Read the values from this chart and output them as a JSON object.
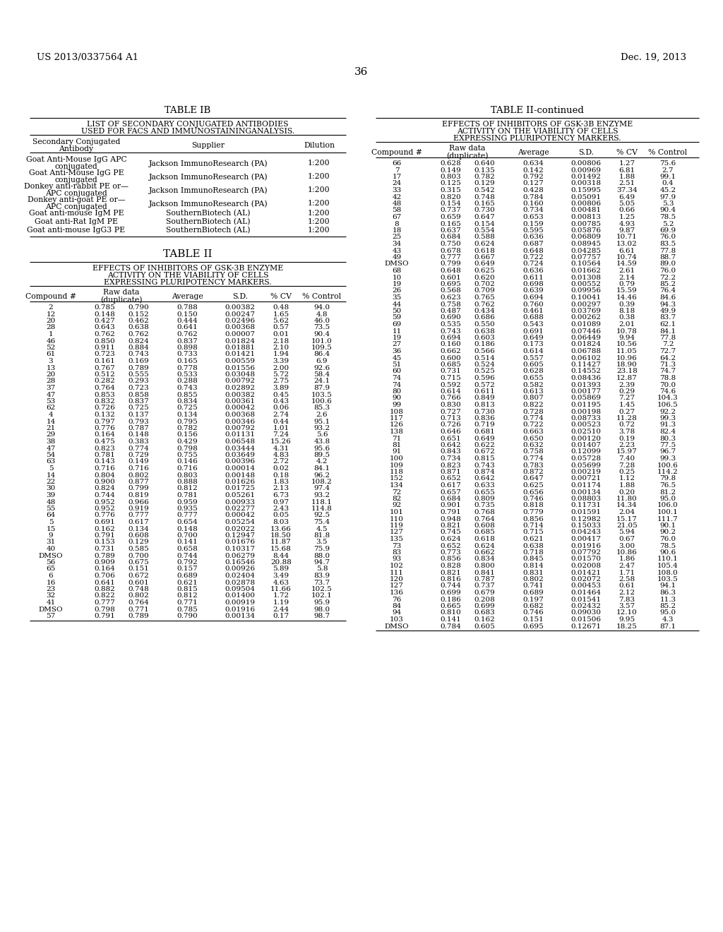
{
  "header_left": "US 2013/0337564 A1",
  "header_right": "Dec. 19, 2013",
  "page_number": "36",
  "table1b_title": "TABLE IB",
  "table1b_subtitle1": "LIST OF SECONDARY CONJUGATED ANTIBODIES",
  "table1b_subtitle2": "USED FOR FACS AND IMMUNOSTAININGANALYSIS.",
  "table1b_rows": [
    [
      "Goat Anti-Mouse IgG APC\nconjugated",
      "Jackson ImmunoResearch (PA)",
      "1:200"
    ],
    [
      "Goat Anti-Mouse IgG PE\nconjugated",
      "Jackson ImmunoResearch (PA)",
      "1:200"
    ],
    [
      "Donkey anti-rabbit PE or—\nAPC conjugated",
      "Jackson ImmunoResearch (PA)",
      "1:200"
    ],
    [
      "Donkey anti-goat PE or—\nAPC conjugated",
      "Jackson ImmunoResearch (PA)",
      "1:200"
    ],
    [
      "Goat anti-mouse IgM PE",
      "SouthernBiotech (AL)",
      "1:200"
    ],
    [
      "Goat anti-Rat IgM PE",
      "SouthernBiotech (AL)",
      "1:200"
    ],
    [
      "Goat anti-mouse IgG3 PE",
      "SouthernBiotech (AL)",
      "1:200"
    ]
  ],
  "table2_title": "TABLE II",
  "table2_subtitle1": "EFFECTS OF INHIBITORS OF GSK-3B ENZYME",
  "table2_subtitle2": "ACTIVITY ON THE VIABILITY OF CELLS",
  "table2_subtitle3": "EXPRESSING PLURIPOTENCY MARKERS.",
  "table2_rows_left": [
    [
      "2",
      "0.785",
      "0.790",
      "0.788",
      "0.00382",
      "0.48",
      "94.0"
    ],
    [
      "12",
      "0.148",
      "0.152",
      "0.150",
      "0.00247",
      "1.65",
      "4.8"
    ],
    [
      "20",
      "0.427",
      "0.462",
      "0.444",
      "0.02496",
      "5.62",
      "46.0"
    ],
    [
      "28",
      "0.643",
      "0.638",
      "0.641",
      "0.00368",
      "0.57",
      "73.5"
    ],
    [
      "1",
      "0.762",
      "0.762",
      "0.762",
      "0.00007",
      "0.01",
      "90.4"
    ],
    [
      "46",
      "0.850",
      "0.824",
      "0.837",
      "0.01824",
      "2.18",
      "101.0"
    ],
    [
      "52",
      "0.911",
      "0.884",
      "0.898",
      "0.01881",
      "2.10",
      "109.5"
    ],
    [
      "61",
      "0.723",
      "0.743",
      "0.733",
      "0.01421",
      "1.94",
      "86.4"
    ],
    [
      "3",
      "0.161",
      "0.169",
      "0.165",
      "0.00559",
      "3.39",
      "6.9"
    ],
    [
      "13",
      "0.767",
      "0.789",
      "0.778",
      "0.01556",
      "2.00",
      "92.6"
    ],
    [
      "20",
      "0.512",
      "0.555",
      "0.533",
      "0.03048",
      "5.72",
      "58.4"
    ],
    [
      "28",
      "0.282",
      "0.293",
      "0.288",
      "0.00792",
      "2.75",
      "24.1"
    ],
    [
      "37",
      "0.764",
      "0.723",
      "0.743",
      "0.02892",
      "3.89",
      "87.9"
    ],
    [
      "47",
      "0.853",
      "0.858",
      "0.855",
      "0.00382",
      "0.45",
      "103.5"
    ],
    [
      "53",
      "0.832",
      "0.837",
      "0.834",
      "0.00361",
      "0.43",
      "100.6"
    ],
    [
      "62",
      "0.726",
      "0.725",
      "0.725",
      "0.00042",
      "0.06",
      "85.3"
    ],
    [
      "4",
      "0.132",
      "0.137",
      "0.134",
      "0.00368",
      "2.74",
      "2.6"
    ],
    [
      "14",
      "0.797",
      "0.793",
      "0.795",
      "0.00346",
      "0.44",
      "95.1"
    ],
    [
      "21",
      "0.776",
      "0.787",
      "0.782",
      "0.00792",
      "1.01",
      "93.2"
    ],
    [
      "29",
      "0.164",
      "0.148",
      "0.156",
      "0.01131",
      "7.24",
      "5.6"
    ],
    [
      "38",
      "0.475",
      "0.383",
      "0.429",
      "0.06548",
      "15.26",
      "43.8"
    ],
    [
      "47",
      "0.823",
      "0.774",
      "0.798",
      "0.03444",
      "4.31",
      "95.6"
    ],
    [
      "54",
      "0.781",
      "0.729",
      "0.755",
      "0.03649",
      "4.83",
      "89.5"
    ],
    [
      "63",
      "0.143",
      "0.149",
      "0.146",
      "0.00396",
      "2.72",
      "4.2"
    ],
    [
      "5",
      "0.716",
      "0.716",
      "0.716",
      "0.00014",
      "0.02",
      "84.1"
    ],
    [
      "14",
      "0.804",
      "0.802",
      "0.803",
      "0.00148",
      "0.18",
      "96.2"
    ],
    [
      "22",
      "0.900",
      "0.877",
      "0.888",
      "0.01626",
      "1.83",
      "108.2"
    ],
    [
      "30",
      "0.824",
      "0.799",
      "0.812",
      "0.01725",
      "2.13",
      "97.4"
    ],
    [
      "39",
      "0.744",
      "0.819",
      "0.781",
      "0.05261",
      "6.73",
      "93.2"
    ],
    [
      "48",
      "0.952",
      "0.966",
      "0.959",
      "0.00933",
      "0.97",
      "118.1"
    ],
    [
      "55",
      "0.952",
      "0.919",
      "0.935",
      "0.02277",
      "2.43",
      "114.8"
    ],
    [
      "64",
      "0.776",
      "0.777",
      "0.777",
      "0.00042",
      "0.05",
      "92.5"
    ],
    [
      "5",
      "0.691",
      "0.617",
      "0.654",
      "0.05254",
      "8.03",
      "75.4"
    ],
    [
      "15",
      "0.162",
      "0.134",
      "0.148",
      "0.02022",
      "13.66",
      "4.5"
    ],
    [
      "9",
      "0.791",
      "0.608",
      "0.700",
      "0.12947",
      "18.50",
      "81.8"
    ],
    [
      "31",
      "0.153",
      "0.129",
      "0.141",
      "0.01676",
      "11.87",
      "3.5"
    ],
    [
      "40",
      "0.731",
      "0.585",
      "0.658",
      "0.10317",
      "15.68",
      "75.9"
    ],
    [
      "DMSO",
      "0.789",
      "0.700",
      "0.744",
      "0.06279",
      "8.44",
      "88.0"
    ],
    [
      "56",
      "0.909",
      "0.675",
      "0.792",
      "0.16546",
      "20.88",
      "94.7"
    ],
    [
      "65",
      "0.164",
      "0.151",
      "0.157",
      "0.00926",
      "5.89",
      "5.8"
    ],
    [
      "6",
      "0.706",
      "0.672",
      "0.689",
      "0.02404",
      "3.49",
      "83.9"
    ],
    [
      "16",
      "0.641",
      "0.601",
      "0.621",
      "0.02878",
      "4.63",
      "73.7"
    ],
    [
      "23",
      "0.882",
      "0.748",
      "0.815",
      "0.09504",
      "11.66",
      "102.5"
    ],
    [
      "32",
      "0.822",
      "0.802",
      "0.812",
      "0.01400",
      "1.72",
      "102.1"
    ],
    [
      "41",
      "0.777",
      "0.764",
      "0.771",
      "0.00919",
      "1.19",
      "95.9"
    ],
    [
      "DMSO",
      "0.798",
      "0.771",
      "0.785",
      "0.01916",
      "2.44",
      "98.0"
    ],
    [
      "57",
      "0.791",
      "0.789",
      "0.790",
      "0.00134",
      "0.17",
      "98.7"
    ]
  ],
  "table2_title_right": "TABLE II-continued",
  "table2_subtitle_right1": "EFFECTS OF INHIBITORS OF GSK-3B ENZYME",
  "table2_subtitle_right2": "ACTIVITY ON THE VIABILITY OF CELLS",
  "table2_subtitle_right3": "EXPRESSING PLURIPOTENCY MARKERS.",
  "table2_rows_right": [
    [
      "66",
      "0.628",
      "0.640",
      "0.634",
      "0.00806",
      "1.27",
      "75.6"
    ],
    [
      "7",
      "0.149",
      "0.135",
      "0.142",
      "0.00969",
      "6.81",
      "2.7"
    ],
    [
      "17",
      "0.803",
      "0.782",
      "0.792",
      "0.01492",
      "1.88",
      "99.1"
    ],
    [
      "24",
      "0.125",
      "0.129",
      "0.127",
      "0.00318",
      "2.51",
      "0.4"
    ],
    [
      "33",
      "0.315",
      "0.542",
      "0.428",
      "0.15995",
      "37.34",
      "45.2"
    ],
    [
      "42",
      "0.820",
      "0.748",
      "0.784",
      "0.05091",
      "6.49",
      "97.9"
    ],
    [
      "48",
      "0.154",
      "0.165",
      "0.160",
      "0.00806",
      "5.05",
      "5.3"
    ],
    [
      "58",
      "0.737",
      "0.730",
      "0.734",
      "0.00481",
      "0.66",
      "90.4"
    ],
    [
      "67",
      "0.659",
      "0.647",
      "0.653",
      "0.00813",
      "1.25",
      "78.5"
    ],
    [
      "8",
      "0.165",
      "0.154",
      "0.159",
      "0.00785",
      "4.93",
      "5.2"
    ],
    [
      "18",
      "0.637",
      "0.554",
      "0.595",
      "0.05876",
      "9.87",
      "69.9"
    ],
    [
      "25",
      "0.684",
      "0.588",
      "0.636",
      "0.06809",
      "10.71",
      "76.0"
    ],
    [
      "34",
      "0.750",
      "0.624",
      "0.687",
      "0.08945",
      "13.02",
      "83.5"
    ],
    [
      "43",
      "0.678",
      "0.618",
      "0.648",
      "0.04285",
      "6.61",
      "77.8"
    ],
    [
      "49",
      "0.777",
      "0.667",
      "0.722",
      "0.07757",
      "10.74",
      "88.7"
    ],
    [
      "DMSO",
      "0.799",
      "0.649",
      "0.724",
      "0.10564",
      "14.59",
      "89.0"
    ],
    [
      "68",
      "0.648",
      "0.625",
      "0.636",
      "0.01662",
      "2.61",
      "76.0"
    ],
    [
      "10",
      "0.601",
      "0.620",
      "0.611",
      "0.01308",
      "2.14",
      "72.2"
    ],
    [
      "19",
      "0.695",
      "0.702",
      "0.698",
      "0.00552",
      "0.79",
      "85.2"
    ],
    [
      "26",
      "0.568",
      "0.709",
      "0.639",
      "0.09956",
      "15.59",
      "76.4"
    ],
    [
      "35",
      "0.623",
      "0.765",
      "0.694",
      "0.10041",
      "14.46",
      "84.6"
    ],
    [
      "44",
      "0.758",
      "0.762",
      "0.760",
      "0.00297",
      "0.39",
      "94.3"
    ],
    [
      "50",
      "0.487",
      "0.434",
      "0.461",
      "0.03769",
      "8.18",
      "49.9"
    ],
    [
      "59",
      "0.690",
      "0.686",
      "0.688",
      "0.00262",
      "0.38",
      "83.7"
    ],
    [
      "69",
      "0.535",
      "0.550",
      "0.543",
      "0.01089",
      "2.01",
      "62.1"
    ],
    [
      "11",
      "0.743",
      "0.638",
      "0.691",
      "0.07446",
      "10.78",
      "84.1"
    ],
    [
      "19",
      "0.694",
      "0.603",
      "0.649",
      "0.06449",
      "9.94",
      "77.8"
    ],
    [
      "27",
      "0.160",
      "0.186",
      "0.173",
      "0.01824",
      "10.56",
      "7.2"
    ],
    [
      "36",
      "0.662",
      "0.566",
      "0.614",
      "0.06788",
      "11.05",
      "72.7"
    ],
    [
      "45",
      "0.600",
      "0.514",
      "0.557",
      "0.06102",
      "10.96",
      "64.2"
    ],
    [
      "51",
      "0.685",
      "0.524",
      "0.605",
      "0.11427",
      "18.90",
      "71.3"
    ],
    [
      "60",
      "0.731",
      "0.525",
      "0.628",
      "0.14552",
      "23.18",
      "74.7"
    ],
    [
      "74",
      "0.715",
      "0.596",
      "0.655",
      "0.08436",
      "12.87",
      "78.8"
    ],
    [
      "74",
      "0.592",
      "0.572",
      "0.582",
      "0.01393",
      "2.39",
      "70.0"
    ],
    [
      "80",
      "0.614",
      "0.611",
      "0.613",
      "0.00177",
      "0.29",
      "74.6"
    ],
    [
      "90",
      "0.766",
      "0.849",
      "0.807",
      "0.05869",
      "7.27",
      "104.3"
    ],
    [
      "99",
      "0.830",
      "0.813",
      "0.822",
      "0.01195",
      "1.45",
      "106.5"
    ],
    [
      "108",
      "0.727",
      "0.730",
      "0.728",
      "0.00198",
      "0.27",
      "92.2"
    ],
    [
      "117",
      "0.713",
      "0.836",
      "0.774",
      "0.08733",
      "11.28",
      "99.3"
    ],
    [
      "126",
      "0.726",
      "0.719",
      "0.722",
      "0.00523",
      "0.72",
      "91.3"
    ],
    [
      "138",
      "0.646",
      "0.681",
      "0.663",
      "0.02510",
      "3.78",
      "82.4"
    ],
    [
      "71",
      "0.651",
      "0.649",
      "0.650",
      "0.00120",
      "0.19",
      "80.3"
    ],
    [
      "81",
      "0.642",
      "0.622",
      "0.632",
      "0.01407",
      "2.23",
      "77.5"
    ],
    [
      "91",
      "0.843",
      "0.672",
      "0.758",
      "0.12099",
      "15.97",
      "96.7"
    ],
    [
      "100",
      "0.734",
      "0.815",
      "0.774",
      "0.05728",
      "7.40",
      "99.3"
    ],
    [
      "109",
      "0.823",
      "0.743",
      "0.783",
      "0.05699",
      "7.28",
      "100.6"
    ],
    [
      "118",
      "0.871",
      "0.874",
      "0.872",
      "0.00219",
      "0.25",
      "114.2"
    ],
    [
      "152",
      "0.652",
      "0.642",
      "0.647",
      "0.00721",
      "1.12",
      "79.8"
    ],
    [
      "134",
      "0.617",
      "0.633",
      "0.625",
      "0.01174",
      "1.88",
      "76.5"
    ],
    [
      "72",
      "0.657",
      "0.655",
      "0.656",
      "0.00134",
      "0.20",
      "81.2"
    ],
    [
      "82",
      "0.684",
      "0.809",
      "0.746",
      "0.08803",
      "11.80",
      "95.0"
    ],
    [
      "92",
      "0.901",
      "0.735",
      "0.818",
      "0.11731",
      "14.34",
      "106.0"
    ],
    [
      "101",
      "0.791",
      "0.768",
      "0.779",
      "0.01591",
      "2.04",
      "100.1"
    ],
    [
      "110",
      "0.948",
      "0.764",
      "0.856",
      "0.12982",
      "15.17",
      "111.7"
    ],
    [
      "119",
      "0.821",
      "0.608",
      "0.714",
      "0.15033",
      "21.05",
      "90.1"
    ],
    [
      "127",
      "0.745",
      "0.685",
      "0.715",
      "0.04243",
      "5.94",
      "90.2"
    ],
    [
      "135",
      "0.624",
      "0.618",
      "0.621",
      "0.00417",
      "0.67",
      "76.0"
    ],
    [
      "73",
      "0.652",
      "0.624",
      "0.638",
      "0.01916",
      "3.00",
      "78.5"
    ],
    [
      "83",
      "0.773",
      "0.662",
      "0.718",
      "0.07792",
      "10.86",
      "90.6"
    ],
    [
      "93",
      "0.856",
      "0.834",
      "0.845",
      "0.01570",
      "1.86",
      "110.1"
    ],
    [
      "102",
      "0.828",
      "0.800",
      "0.814",
      "0.02008",
      "2.47",
      "105.4"
    ],
    [
      "111",
      "0.821",
      "0.841",
      "0.831",
      "0.01421",
      "1.71",
      "108.0"
    ],
    [
      "120",
      "0.816",
      "0.787",
      "0.802",
      "0.02072",
      "2.58",
      "103.5"
    ],
    [
      "127",
      "0.744",
      "0.737",
      "0.741",
      "0.00453",
      "0.61",
      "94.1"
    ],
    [
      "136",
      "0.699",
      "0.679",
      "0.689",
      "0.01464",
      "2.12",
      "86.3"
    ],
    [
      "76",
      "0.186",
      "0.208",
      "0.197",
      "0.01541",
      "7.83",
      "11.3"
    ],
    [
      "84",
      "0.665",
      "0.699",
      "0.682",
      "0.02432",
      "3.57",
      "85.2"
    ],
    [
      "94",
      "0.810",
      "0.683",
      "0.746",
      "0.09030",
      "12.10",
      "95.0"
    ],
    [
      "103",
      "0.141",
      "0.162",
      "0.151",
      "0.01506",
      "9.95",
      "4.3"
    ],
    [
      "DMSO",
      "0.784",
      "0.605",
      "0.695",
      "0.12671",
      "18.25",
      "87.1"
    ]
  ]
}
